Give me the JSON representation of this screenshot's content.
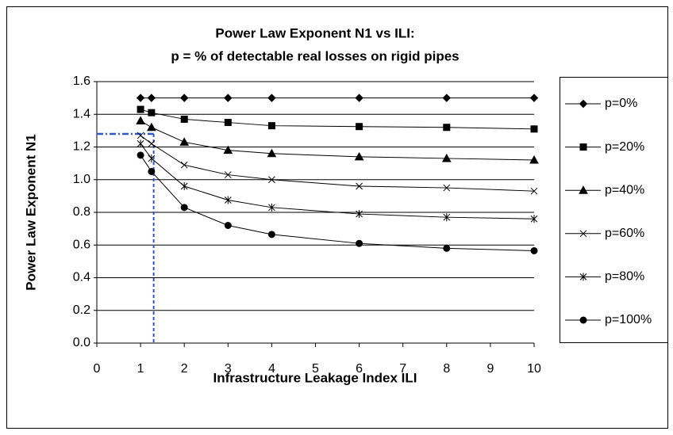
{
  "chart_data": {
    "type": "line",
    "title": [
      "Power Law Exponent N1 vs ILI:",
      "p = % of detectable real losses on rigid pipes"
    ],
    "x_label": "Infrastructure Leakage Index ILI",
    "y_label": "Power Law  Exponent N1",
    "x": [
      1,
      1.25,
      2,
      3,
      4,
      6,
      8,
      10
    ],
    "series": [
      {
        "name": "p=0%",
        "color": "#000000",
        "marker": "diamond",
        "values": [
          1.5,
          1.5,
          1.5,
          1.5,
          1.5,
          1.5,
          1.5,
          1.5
        ]
      },
      {
        "name": "p=20%",
        "color": "#000000",
        "marker": "square",
        "values": [
          1.43,
          1.41,
          1.37,
          1.35,
          1.33,
          1.325,
          1.32,
          1.31
        ]
      },
      {
        "name": "p=40%",
        "color": "#000000",
        "marker": "triangle",
        "values": [
          1.36,
          1.32,
          1.23,
          1.18,
          1.16,
          1.14,
          1.13,
          1.12
        ]
      },
      {
        "name": "p=60%",
        "color": "#000000",
        "marker": "x",
        "values": [
          1.27,
          1.22,
          1.09,
          1.03,
          1.0,
          0.96,
          0.95,
          0.93
        ]
      },
      {
        "name": "p=80%",
        "color": "#000000",
        "marker": "star",
        "values": [
          1.22,
          1.13,
          0.96,
          0.875,
          0.83,
          0.79,
          0.77,
          0.76
        ]
      },
      {
        "name": "p=100%",
        "color": "#000000",
        "marker": "circle",
        "values": [
          1.15,
          1.05,
          0.83,
          0.72,
          0.665,
          0.61,
          0.58,
          0.565
        ]
      }
    ],
    "xlim": [
      0,
      10
    ],
    "xticks": [
      0,
      1,
      2,
      3,
      4,
      5,
      6,
      7,
      8,
      9,
      10
    ],
    "ylim": [
      0,
      1.6
    ],
    "yticks": [
      {
        "value": 0,
        "label": "0.0"
      },
      {
        "value": 0.2,
        "label": "0.2"
      },
      {
        "value": 0.4,
        "label": "0.4"
      },
      {
        "value": 0.6,
        "label": "0.6"
      },
      {
        "value": 0.8,
        "label": "0.8"
      },
      {
        "value": 1,
        "label": "1.0"
      },
      {
        "value": 1.2,
        "label": "1.2"
      },
      {
        "value": 1.4,
        "label": "1.4"
      },
      {
        "value": 1.6,
        "label": "1.6"
      }
    ],
    "grid": true,
    "legend": "right",
    "reference": {
      "x": 1.3,
      "y": 1.28,
      "color": "#3355cc"
    }
  }
}
